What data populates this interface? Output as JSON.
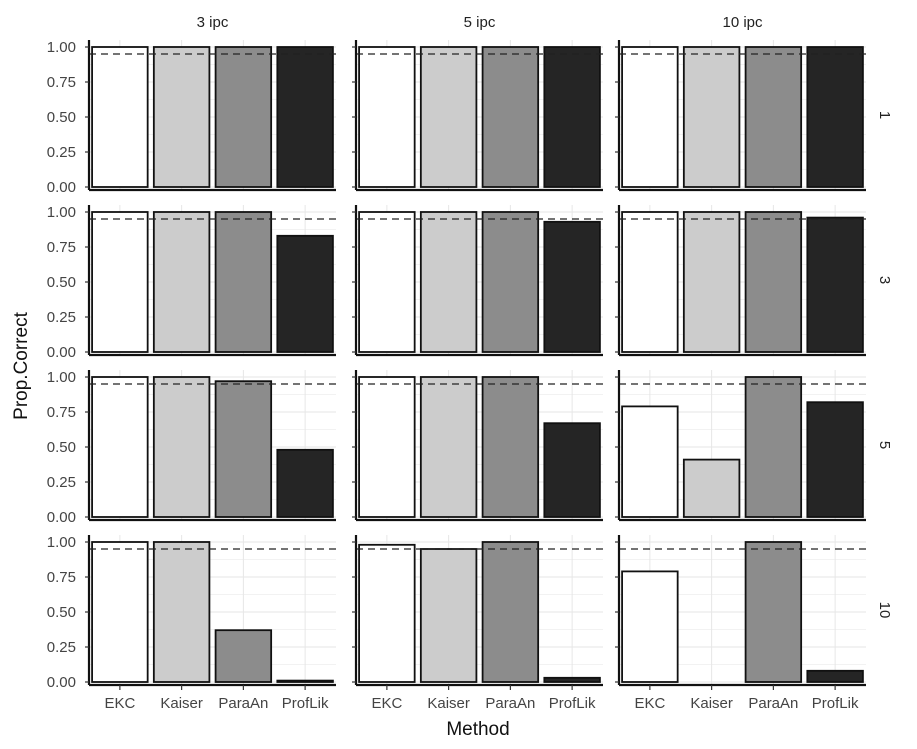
{
  "chart_data": {
    "type": "bar",
    "ylabel": "Prop.Correct",
    "xlabel": "Method",
    "categories": [
      "EKC",
      "Kaiser",
      "ParaAn",
      "ProfLik"
    ],
    "column_facets": [
      "3 ipc",
      "5 ipc",
      "10 ipc"
    ],
    "row_facets": [
      "1",
      "3",
      "5",
      "10"
    ],
    "ylim": [
      0,
      1
    ],
    "yticks": [
      "0.00",
      "0.25",
      "0.50",
      "0.75",
      "1.00"
    ],
    "reference_line": 0.95,
    "grid": true,
    "colors": {
      "EKC": "#ffffff",
      "Kaiser": "#cccccc",
      "ParaAn": "#8c8c8c",
      "ProfLik": "#252525",
      "gridline": "#e6e6e6",
      "bar_outline": "#111111"
    },
    "panels": [
      {
        "row": "1",
        "col": "3 ipc",
        "values": [
          1.0,
          1.0,
          1.0,
          1.0
        ]
      },
      {
        "row": "1",
        "col": "5 ipc",
        "values": [
          1.0,
          1.0,
          1.0,
          1.0
        ]
      },
      {
        "row": "1",
        "col": "10 ipc",
        "values": [
          1.0,
          1.0,
          1.0,
          1.0
        ]
      },
      {
        "row": "3",
        "col": "3 ipc",
        "values": [
          1.0,
          1.0,
          1.0,
          0.83
        ]
      },
      {
        "row": "3",
        "col": "5 ipc",
        "values": [
          1.0,
          1.0,
          1.0,
          0.93
        ]
      },
      {
        "row": "3",
        "col": "10 ipc",
        "values": [
          1.0,
          1.0,
          1.0,
          0.96
        ]
      },
      {
        "row": "5",
        "col": "3 ipc",
        "values": [
          1.0,
          1.0,
          0.97,
          0.48
        ]
      },
      {
        "row": "5",
        "col": "5 ipc",
        "values": [
          1.0,
          1.0,
          1.0,
          0.67
        ]
      },
      {
        "row": "5",
        "col": "10 ipc",
        "values": [
          0.79,
          0.41,
          1.0,
          0.82
        ]
      },
      {
        "row": "10",
        "col": "3 ipc",
        "values": [
          1.0,
          1.0,
          0.37,
          0.01
        ]
      },
      {
        "row": "10",
        "col": "5 ipc",
        "values": [
          0.98,
          0.95,
          1.0,
          0.03
        ]
      },
      {
        "row": "10",
        "col": "10 ipc",
        "values": [
          0.79,
          0.0,
          1.0,
          0.08
        ]
      }
    ]
  }
}
